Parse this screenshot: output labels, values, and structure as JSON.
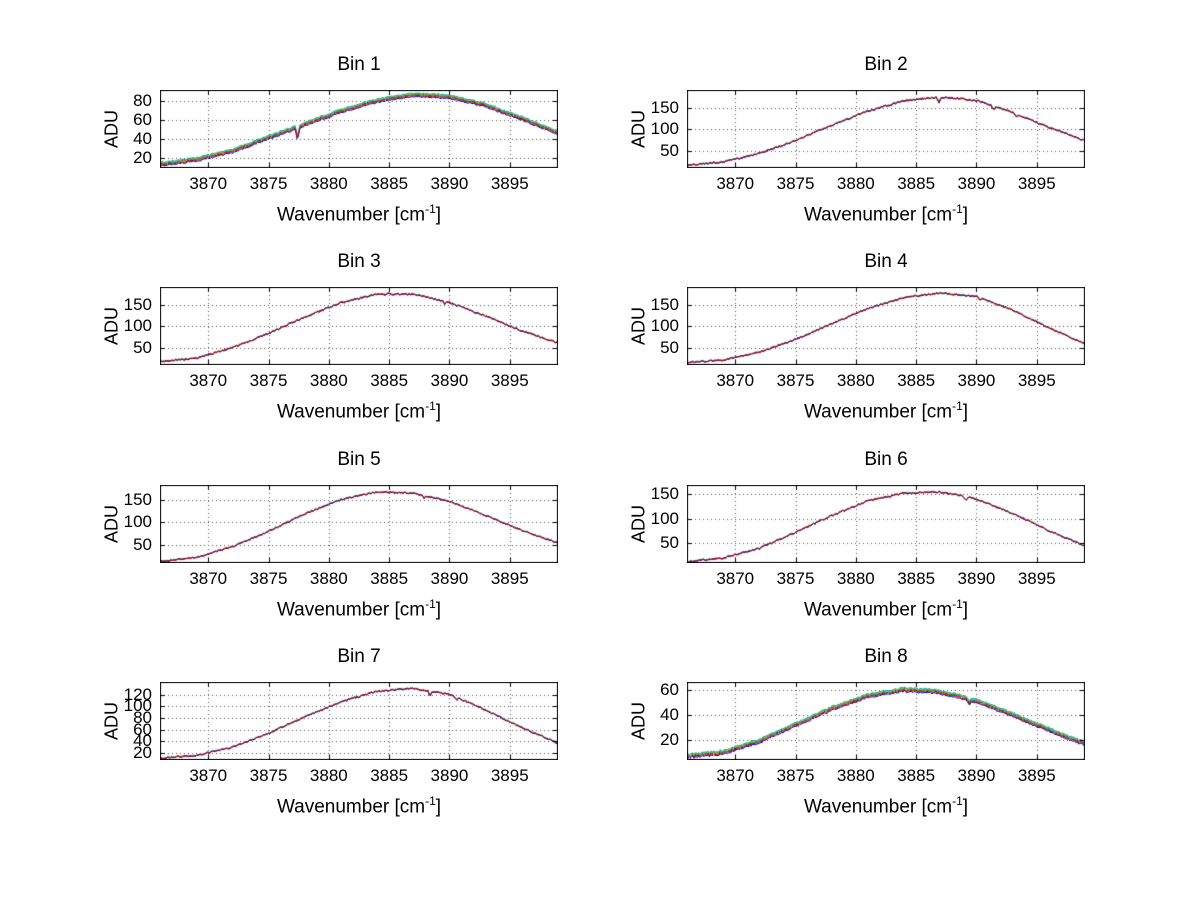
{
  "figure": {
    "background": "#ffffff",
    "grid_color": "#555555",
    "axis_color": "#000000",
    "text_color": "#000000",
    "xlabel_parts": {
      "prefix": "Wavenumber [cm",
      "sup": "-1",
      "suffix": "]"
    },
    "series_style": [
      {
        "name": "trace-green",
        "color": "#008000",
        "offset": 0.2
      },
      {
        "name": "trace-yellow",
        "color": "#c89600",
        "offset": 0.65
      },
      {
        "name": "trace-cyan",
        "color": "#00b4be",
        "offset": 0.95
      },
      {
        "name": "trace-blue",
        "color": "#0000e0",
        "offset": -0.9
      },
      {
        "name": "trace-red",
        "color": "#c00000",
        "offset": -0.35
      }
    ]
  },
  "chart_data": [
    {
      "type": "line",
      "title": "Bin 1",
      "xlabel": "Wavenumber [cm^-1]",
      "ylabel": "ADU",
      "xlim": [
        3866,
        3899
      ],
      "ylim": [
        10,
        92
      ],
      "xticks": [
        3870,
        3875,
        3880,
        3885,
        3890,
        3895
      ],
      "yticks": [
        20,
        40,
        60,
        80
      ],
      "x": [
        3866,
        3869,
        3872,
        3875,
        3878,
        3881,
        3884,
        3887,
        3890,
        3893,
        3896,
        3899
      ],
      "values": [
        14,
        19,
        28,
        42,
        56,
        70,
        81,
        87,
        85,
        76,
        62,
        47
      ],
      "spread": 2.0,
      "noise": 0.8,
      "spikes": [
        {
          "x": 3877.4,
          "depth": 12
        }
      ],
      "grid": true,
      "legend": false
    },
    {
      "type": "line",
      "title": "Bin 2",
      "xlabel": "Wavenumber [cm^-1]",
      "ylabel": "ADU",
      "xlim": [
        3866,
        3899
      ],
      "ylim": [
        10,
        192
      ],
      "xticks": [
        3870,
        3875,
        3880,
        3885,
        3890,
        3895
      ],
      "yticks": [
        50,
        100,
        150
      ],
      "x": [
        3866,
        3869,
        3872,
        3875,
        3878,
        3881,
        3884,
        3887,
        3890,
        3893,
        3896,
        3899
      ],
      "values": [
        17,
        24,
        44,
        74,
        110,
        143,
        167,
        176,
        168,
        140,
        105,
        74
      ],
      "spread": 0.6,
      "noise": 1.8,
      "spikes": [
        {
          "x": 3886.9,
          "depth": 15
        },
        {
          "x": 3891.4,
          "depth": 8
        },
        {
          "x": 3893.3,
          "depth": 6
        }
      ],
      "grid": true,
      "legend": false
    },
    {
      "type": "line",
      "title": "Bin 3",
      "xlabel": "Wavenumber [cm^-1]",
      "ylabel": "ADU",
      "xlim": [
        3866,
        3899
      ],
      "ylim": [
        10,
        192
      ],
      "xticks": [
        3870,
        3875,
        3880,
        3885,
        3890,
        3895
      ],
      "yticks": [
        50,
        100,
        150
      ],
      "x": [
        3866,
        3869,
        3872,
        3875,
        3878,
        3881,
        3884,
        3887,
        3890,
        3893,
        3896,
        3899
      ],
      "values": [
        18,
        26,
        50,
        84,
        122,
        155,
        176,
        175,
        156,
        124,
        90,
        62
      ],
      "spread": 0.6,
      "noise": 2.0,
      "spikes": [
        {
          "x": 3889.6,
          "depth": 5
        }
      ],
      "grid": true,
      "legend": false
    },
    {
      "type": "line",
      "title": "Bin 4",
      "xlabel": "Wavenumber [cm^-1]",
      "ylabel": "ADU",
      "xlim": [
        3866,
        3899
      ],
      "ylim": [
        10,
        192
      ],
      "xticks": [
        3870,
        3875,
        3880,
        3885,
        3890,
        3895
      ],
      "yticks": [
        50,
        100,
        150
      ],
      "x": [
        3866,
        3869,
        3872,
        3875,
        3878,
        3881,
        3884,
        3887,
        3890,
        3893,
        3896,
        3899
      ],
      "values": [
        16,
        22,
        40,
        70,
        106,
        142,
        168,
        178,
        170,
        138,
        97,
        60
      ],
      "spread": 0.6,
      "noise": 1.8,
      "spikes": [
        {
          "x": 3890.3,
          "depth": 6
        }
      ],
      "grid": true,
      "legend": false
    },
    {
      "type": "line",
      "title": "Bin 5",
      "xlabel": "Wavenumber [cm^-1]",
      "ylabel": "ADU",
      "xlim": [
        3866,
        3899
      ],
      "ylim": [
        10,
        182
      ],
      "xticks": [
        3870,
        3875,
        3880,
        3885,
        3890,
        3895
      ],
      "yticks": [
        50,
        100,
        150
      ],
      "x": [
        3866,
        3869,
        3872,
        3875,
        3878,
        3881,
        3884,
        3887,
        3890,
        3893,
        3896,
        3899
      ],
      "values": [
        14,
        22,
        46,
        80,
        118,
        150,
        167,
        164,
        146,
        115,
        82,
        54
      ],
      "spread": 0.5,
      "noise": 1.6,
      "spikes": [
        {
          "x": 3887.9,
          "depth": 5
        }
      ],
      "grid": true,
      "legend": false
    },
    {
      "type": "line",
      "title": "Bin 6",
      "xlabel": "Wavenumber [cm^-1]",
      "ylabel": "ADU",
      "xlim": [
        3866,
        3899
      ],
      "ylim": [
        10,
        168
      ],
      "xticks": [
        3870,
        3875,
        3880,
        3885,
        3890,
        3895
      ],
      "yticks": [
        50,
        100,
        150
      ],
      "x": [
        3866,
        3869,
        3872,
        3875,
        3878,
        3881,
        3884,
        3887,
        3890,
        3893,
        3896,
        3899
      ],
      "values": [
        13,
        20,
        40,
        72,
        106,
        136,
        152,
        154,
        140,
        110,
        76,
        44
      ],
      "spread": 0.5,
      "noise": 1.6,
      "spikes": [
        {
          "x": 3889.1,
          "depth": 7
        }
      ],
      "grid": true,
      "legend": false
    },
    {
      "type": "line",
      "title": "Bin 7",
      "xlabel": "Wavenumber [cm^-1]",
      "ylabel": "ADU",
      "xlim": [
        3866,
        3899
      ],
      "ylim": [
        8,
        142
      ],
      "xticks": [
        3870,
        3875,
        3880,
        3885,
        3890,
        3895
      ],
      "yticks": [
        20,
        40,
        60,
        80,
        100,
        120
      ],
      "x": [
        3866,
        3869,
        3872,
        3875,
        3878,
        3881,
        3884,
        3887,
        3890,
        3893,
        3896,
        3899
      ],
      "values": [
        11,
        16,
        30,
        54,
        82,
        108,
        126,
        131,
        121,
        94,
        64,
        37
      ],
      "spread": 0.5,
      "noise": 1.3,
      "spikes": [
        {
          "x": 3888.4,
          "depth": 8
        },
        {
          "x": 3890.6,
          "depth": 5
        }
      ],
      "grid": true,
      "legend": false
    },
    {
      "type": "line",
      "title": "Bin 8",
      "xlabel": "Wavenumber [cm^-1]",
      "ylabel": "ADU",
      "xlim": [
        3866,
        3899
      ],
      "ylim": [
        4,
        66
      ],
      "xticks": [
        3870,
        3875,
        3880,
        3885,
        3890,
        3895
      ],
      "yticks": [
        20,
        40,
        60
      ],
      "x": [
        3866,
        3869,
        3872,
        3875,
        3878,
        3881,
        3884,
        3887,
        3890,
        3893,
        3896,
        3899
      ],
      "values": [
        7,
        10,
        19,
        32,
        45,
        55,
        60,
        58,
        51,
        40,
        28,
        17
      ],
      "spread": 1.6,
      "noise": 0.7,
      "spikes": [
        {
          "x": 3889.4,
          "depth": 4
        }
      ],
      "grid": true,
      "legend": false
    }
  ]
}
